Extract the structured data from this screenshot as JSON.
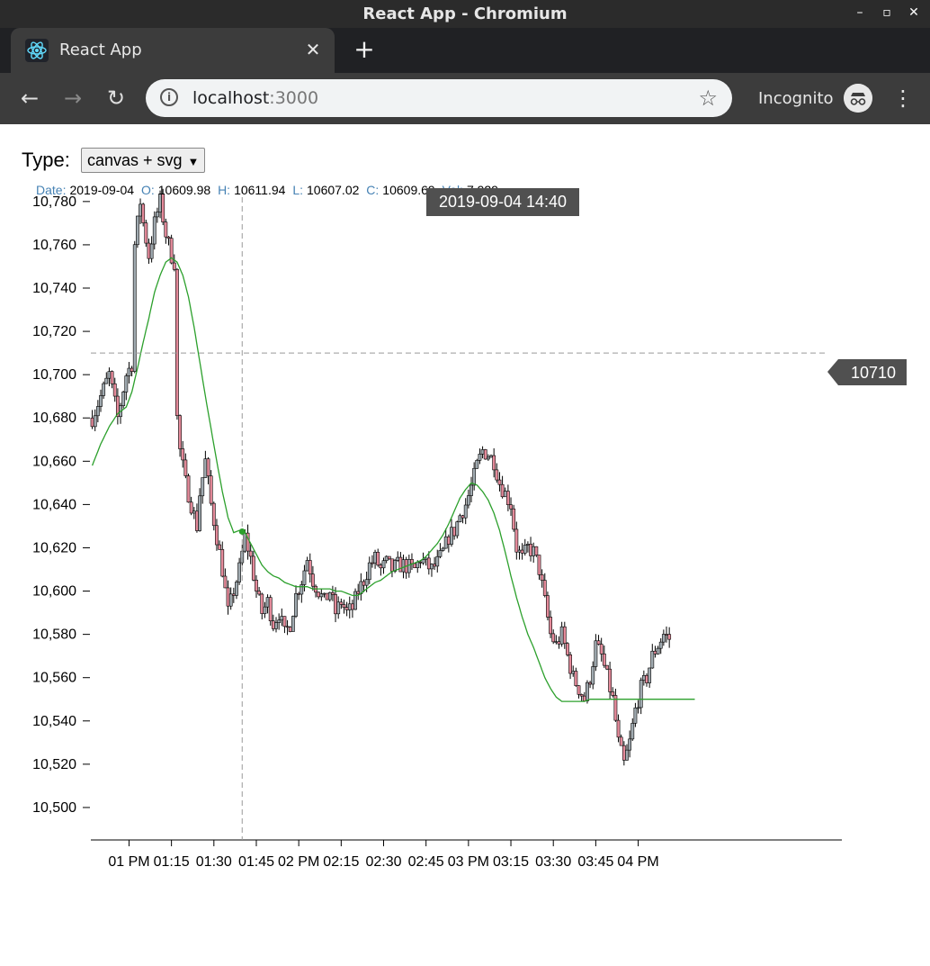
{
  "window": {
    "title": "React App - Chromium",
    "buttons": [
      "–",
      "▫",
      "✕"
    ]
  },
  "tab": {
    "label": "React App",
    "favicon": "react-logo-icon",
    "close": "✕"
  },
  "newtab": "+",
  "toolbar": {
    "back": "←",
    "forward": "→",
    "reload": "↻",
    "url_host": "localhost",
    "url_port": ":3000",
    "star": "☆",
    "incognito_label": "Incognito",
    "menu": "⋮"
  },
  "controls": {
    "type_label": "Type:",
    "type_value": "canvas + svg",
    "type_arrow": "▼"
  },
  "tooltip": {
    "date_label": "Date:",
    "date": "2019-09-04",
    "open_label": "O:",
    "open": "10609.98",
    "high_label": "H:",
    "high": "10611.94",
    "low_label": "L:",
    "low": "10607.02",
    "close_label": "C:",
    "close": "10609.69",
    "vol_label": "Vol:",
    "vol": "7.929"
  },
  "crosshair": {
    "x_label": "2019-09-04 14:40",
    "y_label": "10710",
    "y_value": 10710,
    "x_tick_value": 40
  },
  "colors": {
    "up": "#a0aab0",
    "down": "#e48a9a",
    "ma": "#2ca02c",
    "tooltip_key": "#4682b4",
    "label_bg": "#505050"
  },
  "chart_data": {
    "type": "candlestick",
    "ylim": [
      10485,
      10792
    ],
    "xlim": [
      -13.5,
      252
    ],
    "y_ticks": [
      10780,
      10760,
      10740,
      10720,
      10700,
      10680,
      10660,
      10640,
      10620,
      10600,
      10580,
      10560,
      10540,
      10520,
      10500
    ],
    "y_tick_labels": [
      "10,780",
      "10,760",
      "10,740",
      "10,720",
      "10,700",
      "10,680",
      "10,660",
      "10,640",
      "10,620",
      "10,600",
      "10,580",
      "10,560",
      "10,540",
      "10,520",
      "10,500"
    ],
    "x_ticks": [
      0,
      15,
      30,
      45,
      60,
      75,
      90,
      105,
      120,
      135,
      150,
      165,
      180
    ],
    "x_tick_labels": [
      "01 PM",
      "01:15",
      "01:30",
      "01:45",
      "02 PM",
      "02:15",
      "02:30",
      "02:45",
      "03 PM",
      "03:15",
      "03:30",
      "03:45",
      "04 PM"
    ],
    "x_unit": "minutes after 01 PM",
    "close_knots": [
      [
        -13,
        10680
      ],
      [
        -10,
        10690
      ],
      [
        -7,
        10700
      ],
      [
        -4,
        10680
      ],
      [
        -1,
        10700
      ],
      [
        1,
        10705
      ],
      [
        2,
        10760
      ],
      [
        4,
        10780
      ],
      [
        5,
        10770
      ],
      [
        7,
        10755
      ],
      [
        9,
        10770
      ],
      [
        11,
        10780
      ],
      [
        13,
        10765
      ],
      [
        15,
        10755
      ],
      [
        16,
        10752
      ],
      [
        17,
        10680
      ],
      [
        18,
        10665
      ],
      [
        20,
        10650
      ],
      [
        22,
        10640
      ],
      [
        24,
        10630
      ],
      [
        25,
        10645
      ],
      [
        27,
        10660
      ],
      [
        29,
        10640
      ],
      [
        31,
        10625
      ],
      [
        33,
        10610
      ],
      [
        35,
        10590
      ],
      [
        37,
        10600
      ],
      [
        39,
        10610
      ],
      [
        41,
        10625
      ],
      [
        43,
        10615
      ],
      [
        45,
        10600
      ],
      [
        47,
        10590
      ],
      [
        49,
        10595
      ],
      [
        51,
        10585
      ],
      [
        53,
        10590
      ],
      [
        55,
        10580
      ],
      [
        57,
        10585
      ],
      [
        59,
        10598
      ],
      [
        61,
        10605
      ],
      [
        63,
        10615
      ],
      [
        65,
        10605
      ],
      [
        67,
        10600
      ],
      [
        69,
        10595
      ],
      [
        71,
        10600
      ],
      [
        73,
        10590
      ],
      [
        75,
        10595
      ],
      [
        77,
        10590
      ],
      [
        79,
        10592
      ],
      [
        81,
        10600
      ],
      [
        83,
        10605
      ],
      [
        85,
        10612
      ],
      [
        87,
        10615
      ],
      [
        89,
        10610
      ],
      [
        91,
        10613
      ],
      [
        93,
        10610
      ],
      [
        95,
        10612
      ],
      [
        97,
        10612
      ],
      [
        99,
        10611
      ],
      [
        101,
        10610
      ],
      [
        103,
        10615
      ],
      [
        105,
        10612
      ],
      [
        107,
        10610
      ],
      [
        109,
        10613
      ],
      [
        111,
        10618
      ],
      [
        113,
        10625
      ],
      [
        115,
        10628
      ],
      [
        117,
        10635
      ],
      [
        119,
        10640
      ],
      [
        121,
        10648
      ],
      [
        123,
        10658
      ],
      [
        125,
        10665
      ],
      [
        127,
        10663
      ],
      [
        129,
        10660
      ],
      [
        131,
        10650
      ],
      [
        133,
        10645
      ],
      [
        135,
        10640
      ],
      [
        137,
        10620
      ],
      [
        139,
        10615
      ],
      [
        141,
        10620
      ],
      [
        143,
        10618
      ],
      [
        145,
        10610
      ],
      [
        147,
        10595
      ],
      [
        149,
        10580
      ],
      [
        151,
        10575
      ],
      [
        153,
        10580
      ],
      [
        155,
        10570
      ],
      [
        157,
        10560
      ],
      [
        159,
        10555
      ],
      [
        161,
        10550
      ],
      [
        163,
        10560
      ],
      [
        165,
        10575
      ],
      [
        167,
        10570
      ],
      [
        169,
        10560
      ],
      [
        171,
        10550
      ],
      [
        173,
        10530
      ],
      [
        175,
        10520
      ],
      [
        177,
        10530
      ],
      [
        179,
        10545
      ],
      [
        181,
        10555
      ],
      [
        183,
        10560
      ],
      [
        185,
        10570
      ],
      [
        187,
        10575
      ],
      [
        189,
        10580
      ],
      [
        191,
        10578
      ]
    ],
    "ma_knots": [
      [
        -13,
        10658
      ],
      [
        -10,
        10668
      ],
      [
        -7,
        10676
      ],
      [
        -4,
        10682
      ],
      [
        -1,
        10685
      ],
      [
        1,
        10692
      ],
      [
        3,
        10703
      ],
      [
        5,
        10715
      ],
      [
        7,
        10726
      ],
      [
        9,
        10738
      ],
      [
        11,
        10746
      ],
      [
        13,
        10752
      ],
      [
        15,
        10754
      ],
      [
        17,
        10752
      ],
      [
        19,
        10746
      ],
      [
        21,
        10736
      ],
      [
        23,
        10722
      ],
      [
        25,
        10706
      ],
      [
        27,
        10690
      ],
      [
        29,
        10675
      ],
      [
        31,
        10660
      ],
      [
        33,
        10646
      ],
      [
        35,
        10634
      ],
      [
        37,
        10627
      ],
      [
        39,
        10628
      ],
      [
        41,
        10627
      ],
      [
        43,
        10622
      ],
      [
        45,
        10617
      ],
      [
        47,
        10612
      ],
      [
        49,
        10609
      ],
      [
        51,
        10607
      ],
      [
        53,
        10606
      ],
      [
        55,
        10604
      ],
      [
        57,
        10603
      ],
      [
        59,
        10602
      ],
      [
        61,
        10602
      ],
      [
        63,
        10602
      ],
      [
        65,
        10601
      ],
      [
        67,
        10601
      ],
      [
        69,
        10601
      ],
      [
        71,
        10601
      ],
      [
        73,
        10600
      ],
      [
        75,
        10600
      ],
      [
        77,
        10599
      ],
      [
        79,
        10598
      ],
      [
        81,
        10598
      ],
      [
        83,
        10600
      ],
      [
        85,
        10602
      ],
      [
        87,
        10604
      ],
      [
        89,
        10605
      ],
      [
        91,
        10607
      ],
      [
        93,
        10609
      ],
      [
        95,
        10610
      ],
      [
        97,
        10611
      ],
      [
        99,
        10612
      ],
      [
        101,
        10613
      ],
      [
        103,
        10614
      ],
      [
        105,
        10616
      ],
      [
        107,
        10619
      ],
      [
        109,
        10622
      ],
      [
        111,
        10626
      ],
      [
        113,
        10631
      ],
      [
        115,
        10637
      ],
      [
        117,
        10643
      ],
      [
        119,
        10647
      ],
      [
        121,
        10650
      ],
      [
        123,
        10649
      ],
      [
        125,
        10646
      ],
      [
        127,
        10642
      ],
      [
        129,
        10636
      ],
      [
        131,
        10628
      ],
      [
        133,
        10618
      ],
      [
        135,
        10607
      ],
      [
        137,
        10597
      ],
      [
        139,
        10588
      ],
      [
        141,
        10580
      ],
      [
        143,
        10574
      ],
      [
        145,
        10567
      ],
      [
        147,
        10560
      ],
      [
        149,
        10555
      ],
      [
        151,
        10551
      ],
      [
        153,
        10549
      ],
      [
        155,
        10549
      ],
      [
        157,
        10549
      ],
      [
        159,
        10549
      ],
      [
        161,
        10549
      ],
      [
        163,
        10550
      ]
    ]
  }
}
